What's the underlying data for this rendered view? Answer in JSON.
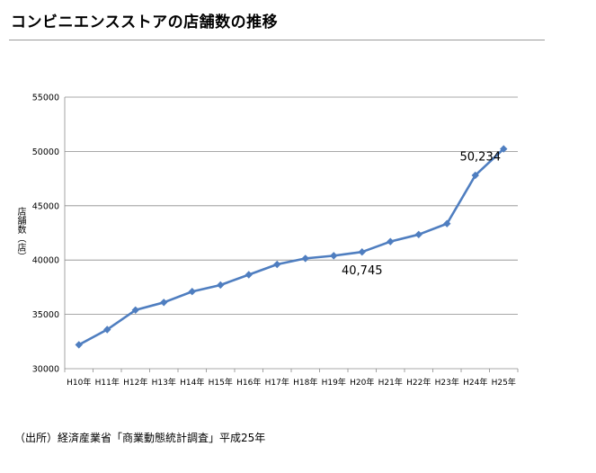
{
  "title": "コンビニエンスストアの店舗数の推移",
  "source": "（出所）経済産業省「商業動態統計調査」平成25年",
  "chart_data": {
    "type": "line",
    "ylabel": "店舗数（店）",
    "ylim": [
      30000,
      55000
    ],
    "yticks": [
      30000,
      35000,
      40000,
      45000,
      50000,
      55000
    ],
    "categories": [
      "H10年",
      "H11年",
      "H12年",
      "H13年",
      "H14年",
      "H15年",
      "H16年",
      "H17年",
      "H18年",
      "H19年",
      "H20年",
      "H21年",
      "H22年",
      "H23年",
      "H24年",
      "H25年"
    ],
    "series": [
      {
        "values": [
          32200,
          33600,
          35400,
          36100,
          37100,
          37700,
          38650,
          39600,
          40150,
          40400,
          40745,
          41700,
          42350,
          43350,
          47800,
          50234
        ],
        "color": "#4f7ec0"
      }
    ],
    "annotations": [
      {
        "text": "40,745",
        "category_index": 10
      },
      {
        "text": "50,234",
        "category_index": 15
      }
    ],
    "grid": true
  }
}
